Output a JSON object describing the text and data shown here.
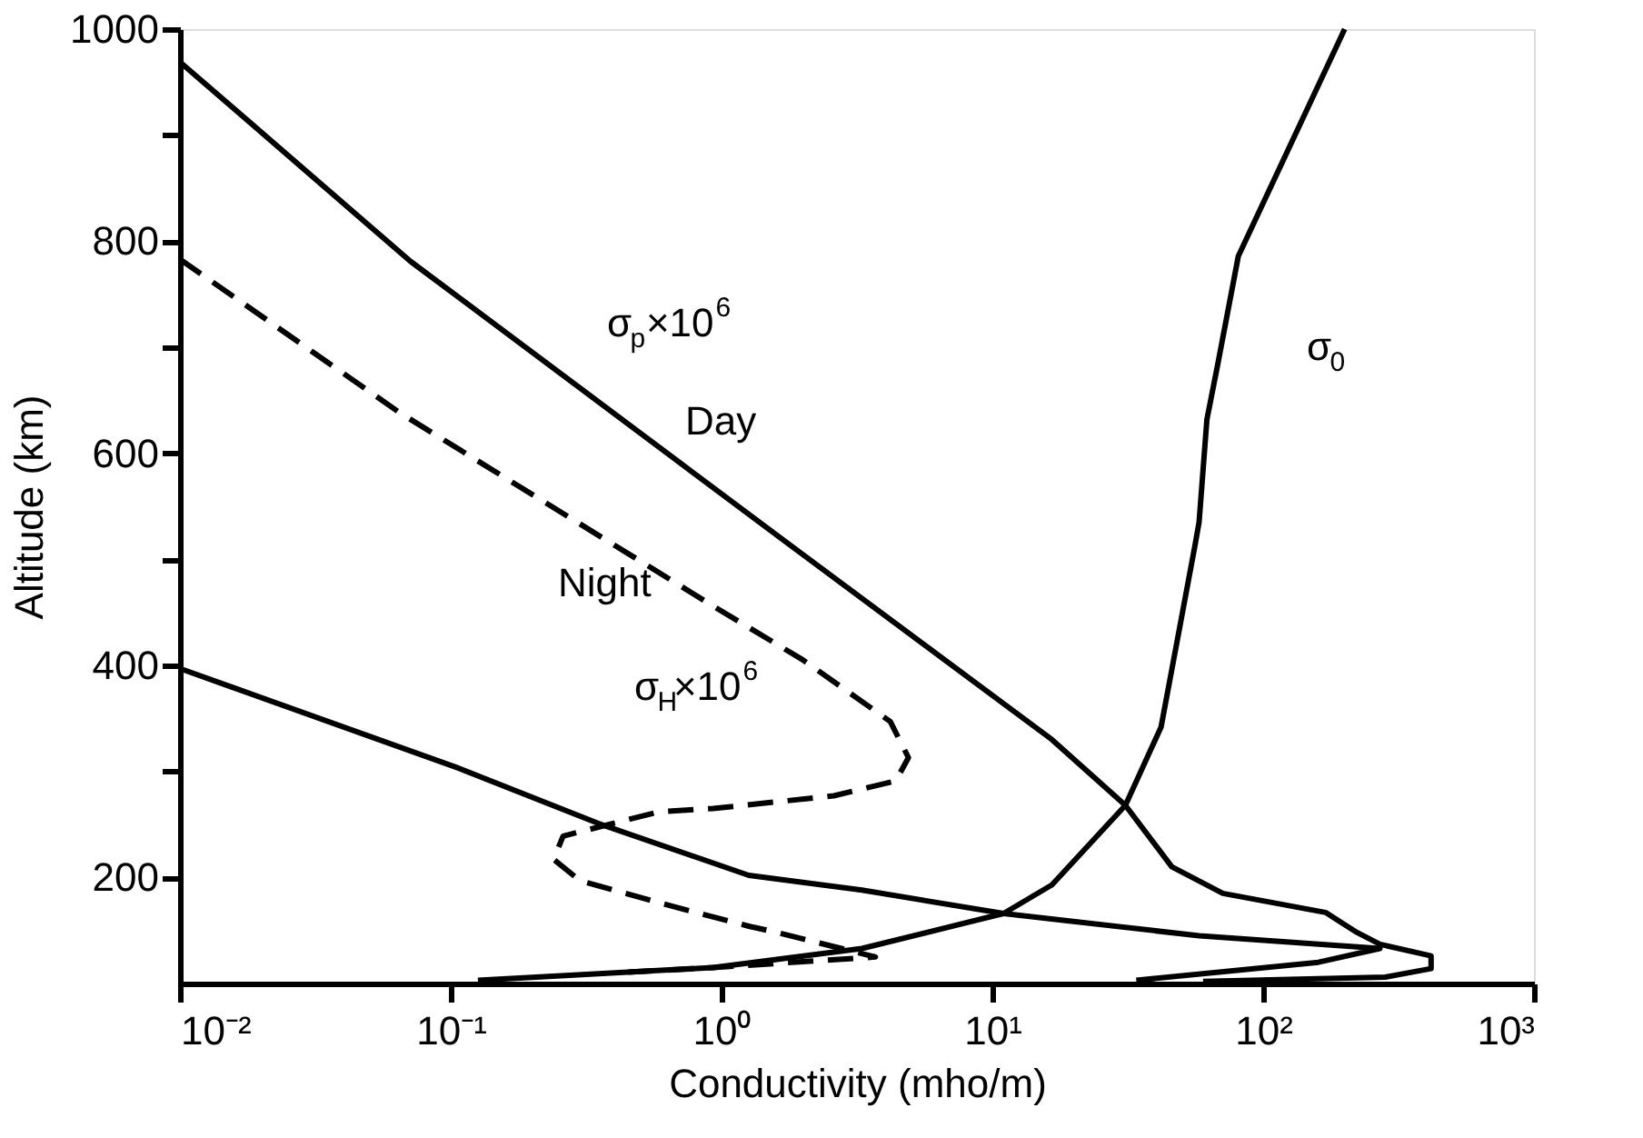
{
  "chart_data": {
    "type": "line",
    "xlabel": "Conductivity (mho/m)",
    "ylabel": "Altitude (km)",
    "log": "x",
    "xlim": [
      0.01,
      1000
    ],
    "ylim": [
      100,
      1000
    ],
    "xticks": [
      {
        "value": 0.01,
        "label": "10⁻²"
      },
      {
        "value": 0.1,
        "label": "10⁻¹"
      },
      {
        "value": 1,
        "label": "10⁰"
      },
      {
        "value": 10,
        "label": "10¹"
      },
      {
        "value": 100,
        "label": "10²"
      },
      {
        "value": 1000,
        "label": "10³"
      }
    ],
    "yticks": [
      200,
      {
        "value": 300,
        "label": null
      },
      400,
      {
        "value": 500,
        "label": null
      },
      600,
      {
        "value": 700,
        "label": null
      },
      800,
      {
        "value": 900,
        "label": null
      },
      1000
    ],
    "grid": false,
    "series": [
      {
        "color": "#000000",
        "line_style": "solid",
        "x": [
          0.01,
          0.071,
          1.8,
          16.6,
          31,
          46,
          71,
          170,
          219,
          270,
          417,
          417,
          282,
          60
        ],
        "values": [
          969,
          781,
          513,
          330,
          268,
          210,
          185,
          167,
          149,
          137,
          126,
          114,
          106,
          102
        ]
      },
      {
        "color": "#000000",
        "line_style": "dashed",
        "x": [
          0.01,
          0.065,
          0.93,
          2.0,
          4.2,
          4.9,
          4.4,
          2.6,
          0.93,
          0.59,
          0.26,
          0.24,
          0.3,
          0.59,
          1.26,
          1.55,
          3.7,
          0.93,
          0.4
        ],
        "values": [
          783,
          638,
          456,
          405,
          347,
          313,
          291,
          277,
          265,
          262,
          239,
          217,
          197,
          176,
          154,
          149,
          125,
          115,
          110
        ]
      },
      {
        "color": "#000000",
        "line_style": "solid",
        "x": [
          0.01,
          0.107,
          0.35,
          1.26,
          3.3,
          11,
          58,
          270,
          160,
          34
        ],
        "values": [
          397,
          303,
          251,
          202,
          188,
          166,
          145,
          133,
          120,
          103
        ]
      },
      {
        "color": "#000000",
        "line_style": "solid",
        "x": [
          200,
          81,
          68,
          62,
          58,
          56,
          42,
          31,
          16.6,
          11,
          3.3,
          0.93,
          0.126
        ],
        "values": [
          1000,
          786,
          684,
          632,
          535,
          513,
          342,
          268,
          193,
          166,
          133,
          115,
          103
        ]
      }
    ],
    "annotations": [
      "Day",
      "Night",
      "σ$_{p}$×10$^{6}$",
      "σ$_{H}$×10$^{6}$",
      "σ$_{0}$"
    ]
  }
}
